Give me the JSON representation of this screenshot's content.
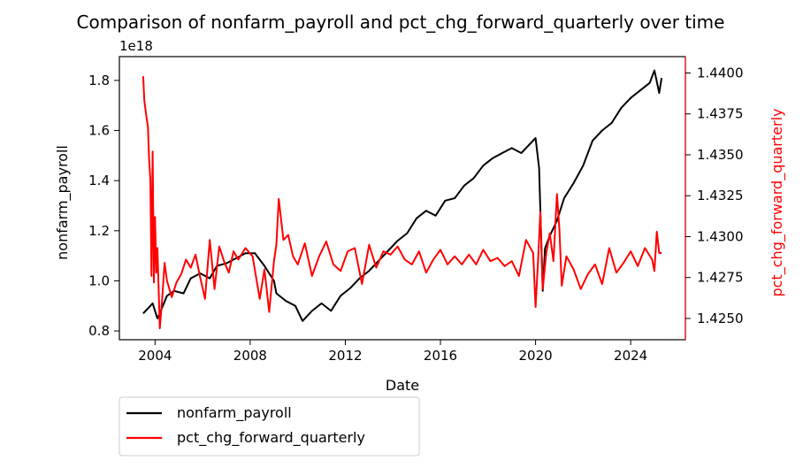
{
  "chart_data": {
    "type": "line",
    "title": "Comparison of nonfarm_payroll and pct_chg_forward_quarterly over time",
    "xlabel": "Date",
    "ylabel": "nonfarm_payroll",
    "ylabel_right": "pct_chg_forward_quarterly",
    "y_offset_text": "1e18",
    "xlim": [
      2002.5,
      2026.3
    ],
    "ylim": [
      0.765,
      1.895
    ],
    "ylim_right": [
      1.4237,
      1.441
    ],
    "x_ticks": [
      2004,
      2008,
      2012,
      2016,
      2020,
      2024
    ],
    "x_tick_labels": [
      "2004",
      "2008",
      "2012",
      "2016",
      "2020",
      "2024"
    ],
    "y_ticks": [
      0.8,
      1.0,
      1.2,
      1.4,
      1.6,
      1.8
    ],
    "y_tick_labels": [
      "0.8",
      "1.0",
      "1.2",
      "1.4",
      "1.6",
      "1.8"
    ],
    "y_ticks_right": [
      1.425,
      1.4275,
      1.43,
      1.4325,
      1.435,
      1.4375,
      1.44
    ],
    "y_tick_labels_right": [
      "1.4250",
      "1.4275",
      "1.4300",
      "1.4325",
      "1.4350",
      "1.4375",
      "1.4400"
    ],
    "grid": false,
    "legend_position": "below-left, outside plot",
    "series": [
      {
        "name": "nonfarm_payroll",
        "color": "#000000",
        "axis": "left",
        "x": [
          2003.5,
          2003.7,
          2003.9,
          2004.1,
          2004.2,
          2004.5,
          2004.8,
          2005.2,
          2005.5,
          2005.9,
          2006.3,
          2006.6,
          2007.0,
          2007.4,
          2007.8,
          2008.2,
          2008.6,
          2009.0,
          2009.1,
          2009.5,
          2009.9,
          2010.2,
          2010.6,
          2011.0,
          2011.4,
          2011.8,
          2012.2,
          2012.6,
          2013.0,
          2013.4,
          2013.8,
          2014.2,
          2014.6,
          2015.0,
          2015.4,
          2015.8,
          2016.2,
          2016.6,
          2017.0,
          2017.4,
          2017.8,
          2018.2,
          2018.6,
          2019.0,
          2019.4,
          2019.8,
          2020.0,
          2020.15,
          2020.3,
          2020.4,
          2020.6,
          2020.9,
          2021.2,
          2021.6,
          2022.0,
          2022.4,
          2022.8,
          2023.2,
          2023.6,
          2024.0,
          2024.4,
          2024.8,
          2025.0,
          2025.2,
          2025.3
        ],
        "y": [
          0.87,
          0.89,
          0.91,
          0.85,
          0.87,
          0.94,
          0.96,
          0.95,
          1.01,
          1.03,
          1.01,
          1.06,
          1.07,
          1.09,
          1.11,
          1.11,
          1.06,
          1.0,
          0.95,
          0.92,
          0.9,
          0.84,
          0.88,
          0.91,
          0.88,
          0.94,
          0.97,
          1.01,
          1.04,
          1.08,
          1.12,
          1.16,
          1.19,
          1.25,
          1.28,
          1.26,
          1.32,
          1.33,
          1.38,
          1.41,
          1.46,
          1.49,
          1.51,
          1.53,
          1.51,
          1.55,
          1.57,
          1.45,
          0.96,
          1.13,
          1.18,
          1.24,
          1.33,
          1.39,
          1.46,
          1.56,
          1.6,
          1.63,
          1.69,
          1.73,
          1.76,
          1.79,
          1.84,
          1.75,
          1.81
        ]
      },
      {
        "name": "pct_chg_forward_quarterly",
        "color": "#ff0000",
        "axis": "right",
        "x": [
          2003.5,
          2003.55,
          2003.65,
          2003.7,
          2003.75,
          2003.8,
          2003.85,
          2003.9,
          2003.95,
          2004.0,
          2004.05,
          2004.1,
          2004.2,
          2004.3,
          2004.4,
          2004.5,
          2004.7,
          2004.9,
          2005.1,
          2005.3,
          2005.5,
          2005.7,
          2005.9,
          2006.1,
          2006.3,
          2006.5,
          2006.7,
          2006.9,
          2007.1,
          2007.3,
          2007.5,
          2007.8,
          2008.1,
          2008.4,
          2008.6,
          2008.8,
          2009.0,
          2009.1,
          2009.2,
          2009.4,
          2009.6,
          2009.8,
          2010.0,
          2010.3,
          2010.6,
          2010.9,
          2011.2,
          2011.5,
          2011.8,
          2012.1,
          2012.4,
          2012.7,
          2013.0,
          2013.3,
          2013.6,
          2013.9,
          2014.2,
          2014.5,
          2014.8,
          2015.1,
          2015.4,
          2015.7,
          2016.0,
          2016.3,
          2016.6,
          2016.9,
          2017.2,
          2017.5,
          2017.8,
          2018.1,
          2018.4,
          2018.7,
          2019.0,
          2019.3,
          2019.6,
          2019.9,
          2020.0,
          2020.1,
          2020.2,
          2020.3,
          2020.45,
          2020.6,
          2020.75,
          2020.9,
          2021.0,
          2021.1,
          2021.3,
          2021.6,
          2021.9,
          2022.2,
          2022.5,
          2022.8,
          2023.1,
          2023.4,
          2023.7,
          2024.0,
          2024.3,
          2024.6,
          2024.9,
          2025.0,
          2025.1,
          2025.2,
          2025.3
        ],
        "y": [
          1.4398,
          1.4383,
          1.4372,
          1.4367,
          1.4347,
          1.4335,
          1.4276,
          1.4352,
          1.4272,
          1.4312,
          1.4278,
          1.4293,
          1.4244,
          1.4262,
          1.4284,
          1.4273,
          1.4263,
          1.4272,
          1.4277,
          1.4286,
          1.4281,
          1.4289,
          1.4275,
          1.4262,
          1.4298,
          1.4268,
          1.4294,
          1.4285,
          1.4278,
          1.4291,
          1.4286,
          1.4293,
          1.4288,
          1.4262,
          1.428,
          1.4254,
          1.4285,
          1.4295,
          1.4323,
          1.4298,
          1.4301,
          1.4288,
          1.4283,
          1.4296,
          1.4276,
          1.4288,
          1.4297,
          1.4283,
          1.4279,
          1.4291,
          1.4293,
          1.4271,
          1.4295,
          1.4281,
          1.4291,
          1.4289,
          1.4294,
          1.4286,
          1.4283,
          1.4291,
          1.4278,
          1.4286,
          1.4292,
          1.4283,
          1.4288,
          1.4283,
          1.4289,
          1.4283,
          1.4292,
          1.4285,
          1.4287,
          1.4282,
          1.4285,
          1.4276,
          1.4298,
          1.429,
          1.4257,
          1.4284,
          1.4315,
          1.4268,
          1.429,
          1.4302,
          1.4285,
          1.4326,
          1.4305,
          1.427,
          1.4288,
          1.428,
          1.4268,
          1.4277,
          1.4283,
          1.4271,
          1.4293,
          1.4278,
          1.4284,
          1.4291,
          1.4282,
          1.4293,
          1.4286,
          1.4279,
          1.4303,
          1.429,
          1.429
        ]
      }
    ]
  }
}
